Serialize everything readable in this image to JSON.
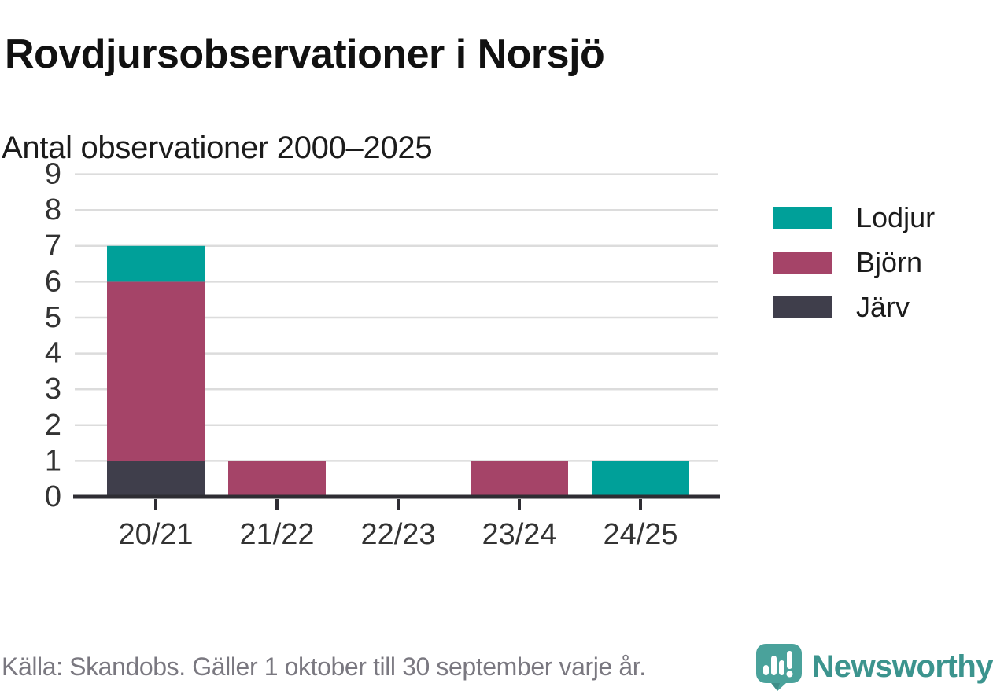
{
  "title": "Rovdjursobservationer i Norsjö",
  "subtitle": "Antal observationer 2000–2025",
  "chart_data": {
    "type": "bar",
    "stacked": true,
    "title": "Rovdjursobservationer i Norsjö",
    "subtitle": "Antal observationer 2000–2025",
    "categories": [
      "20/21",
      "21/22",
      "22/23",
      "23/24",
      "24/25"
    ],
    "series": [
      {
        "name": "Järv",
        "color": "#3f3e4b",
        "values": [
          1,
          0,
          0,
          0,
          0
        ]
      },
      {
        "name": "Björn",
        "color": "#a54468",
        "values": [
          5,
          1,
          0,
          1,
          0
        ]
      },
      {
        "name": "Lodjur",
        "color": "#00a099",
        "values": [
          1,
          0,
          0,
          0,
          1
        ]
      }
    ],
    "stack_order_bottom_to_top": [
      "Järv",
      "Björn",
      "Lodjur"
    ],
    "totals": [
      7,
      1,
      0,
      1,
      1
    ],
    "xlabel": "",
    "ylabel": "",
    "ylim": [
      0,
      9
    ],
    "yticks": [
      0,
      1,
      2,
      3,
      4,
      5,
      6,
      7,
      8,
      9
    ],
    "grid": "horizontal",
    "legend_position": "right"
  },
  "legend": {
    "items": [
      {
        "label": "Lodjur",
        "color": "#00a099"
      },
      {
        "label": "Björn",
        "color": "#a54468"
      },
      {
        "label": "Järv",
        "color": "#3f3e4b"
      }
    ]
  },
  "footer": {
    "source": "Källa: Skandobs. Gäller 1 oktober till 30 september varje år.",
    "brand": "Newsworthy"
  },
  "colors": {
    "axis": "#2e2d33",
    "gridline": "#dcdcdc",
    "tick_label": "#333333",
    "title_text": "#111111",
    "source_text": "#7a7880",
    "brand_teal": "#3c948e"
  }
}
